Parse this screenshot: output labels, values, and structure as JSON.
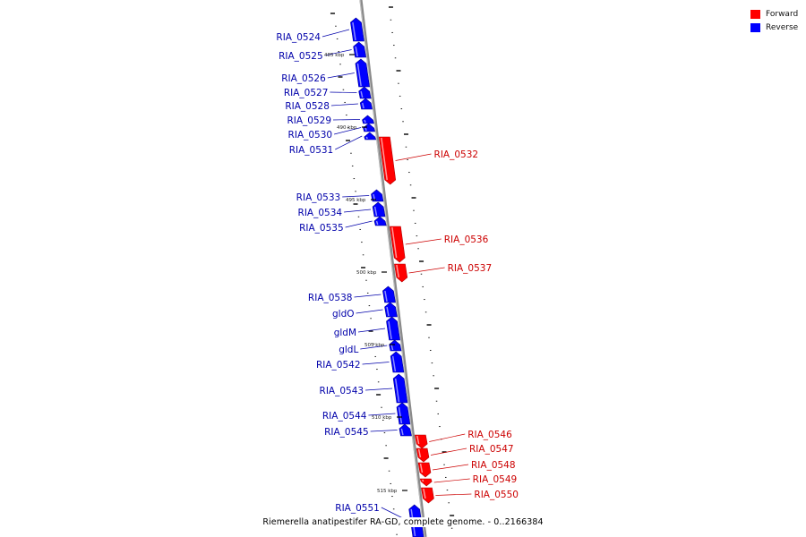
{
  "legend": {
    "forward": {
      "label": "Forward",
      "color": "#ff0000"
    },
    "reverse": {
      "label": "Reverse",
      "color": "#0000ff"
    }
  },
  "caption": "Riemerella anatipestifer RA-GD, complete genome. - 0..2166384",
  "scale_labels": [
    "485 kbp",
    "490 kbp",
    "495 kbp",
    "500 kbp",
    "505 kbp",
    "510 kbp",
    "515 kbp"
  ],
  "genes": [
    {
      "name": "RIA_0524",
      "strand": "reverse"
    },
    {
      "name": "RIA_0525",
      "strand": "reverse"
    },
    {
      "name": "RIA_0526",
      "strand": "reverse"
    },
    {
      "name": "RIA_0527",
      "strand": "reverse"
    },
    {
      "name": "RIA_0528",
      "strand": "reverse"
    },
    {
      "name": "RIA_0529",
      "strand": "reverse"
    },
    {
      "name": "RIA_0530",
      "strand": "reverse"
    },
    {
      "name": "RIA_0531",
      "strand": "reverse"
    },
    {
      "name": "RIA_0532",
      "strand": "forward"
    },
    {
      "name": "RIA_0533",
      "strand": "reverse"
    },
    {
      "name": "RIA_0534",
      "strand": "reverse"
    },
    {
      "name": "RIA_0535",
      "strand": "reverse"
    },
    {
      "name": "RIA_0536",
      "strand": "forward"
    },
    {
      "name": "RIA_0537",
      "strand": "forward"
    },
    {
      "name": "RIA_0538",
      "strand": "reverse"
    },
    {
      "name": "gldO",
      "strand": "reverse"
    },
    {
      "name": "gldM",
      "strand": "reverse"
    },
    {
      "name": "gldL",
      "strand": "reverse"
    },
    {
      "name": "RIA_0542",
      "strand": "reverse"
    },
    {
      "name": "RIA_0543",
      "strand": "reverse"
    },
    {
      "name": "RIA_0544",
      "strand": "reverse"
    },
    {
      "name": "RIA_0545",
      "strand": "reverse"
    },
    {
      "name": "RIA_0546",
      "strand": "forward"
    },
    {
      "name": "RIA_0547",
      "strand": "forward"
    },
    {
      "name": "RIA_0548",
      "strand": "forward"
    },
    {
      "name": "RIA_0549",
      "strand": "forward"
    },
    {
      "name": "RIA_0550",
      "strand": "forward"
    },
    {
      "name": "RIA_0551",
      "strand": "reverse"
    }
  ]
}
